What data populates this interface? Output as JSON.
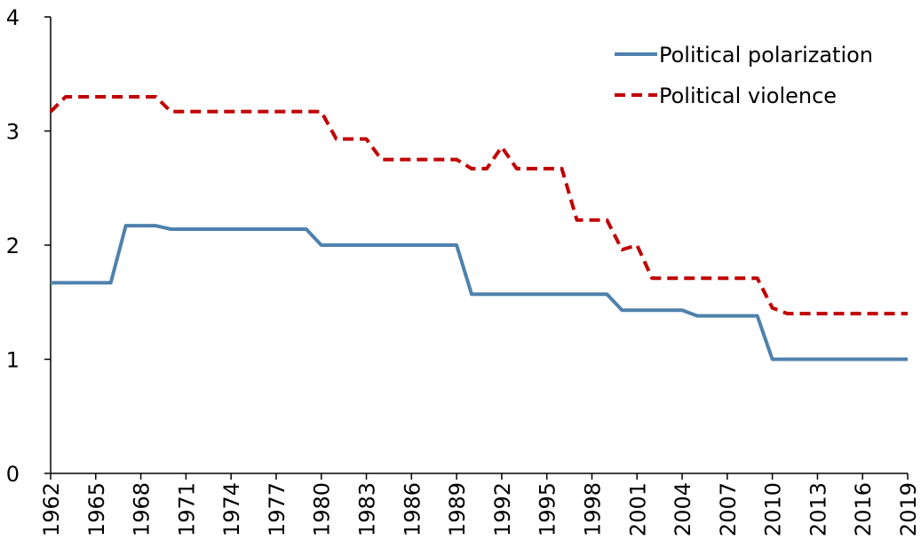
{
  "chart_data": {
    "type": "line",
    "x": [
      1962,
      1963,
      1964,
      1965,
      1966,
      1967,
      1968,
      1969,
      1970,
      1971,
      1972,
      1973,
      1974,
      1975,
      1976,
      1977,
      1978,
      1979,
      1980,
      1981,
      1982,
      1983,
      1984,
      1985,
      1986,
      1987,
      1988,
      1989,
      1990,
      1991,
      1992,
      1993,
      1994,
      1995,
      1996,
      1997,
      1998,
      1999,
      2000,
      2001,
      2002,
      2003,
      2004,
      2005,
      2006,
      2007,
      2008,
      2009,
      2010,
      2011,
      2012,
      2013,
      2014,
      2015,
      2016,
      2017,
      2018,
      2019
    ],
    "series": [
      {
        "name": "Political polarization",
        "color": "#4f81ad",
        "dash": false,
        "values": [
          1.67,
          1.67,
          1.67,
          1.67,
          1.67,
          2.17,
          2.17,
          2.17,
          2.14,
          2.14,
          2.14,
          2.14,
          2.14,
          2.14,
          2.14,
          2.14,
          2.14,
          2.14,
          2.0,
          2.0,
          2.0,
          2.0,
          2.0,
          2.0,
          2.0,
          2.0,
          2.0,
          2.0,
          1.57,
          1.57,
          1.57,
          1.57,
          1.57,
          1.57,
          1.57,
          1.57,
          1.57,
          1.57,
          1.43,
          1.43,
          1.43,
          1.43,
          1.43,
          1.38,
          1.38,
          1.38,
          1.38,
          1.38,
          1.0,
          1.0,
          1.0,
          1.0,
          1.0,
          1.0,
          1.0,
          1.0,
          1.0,
          1.0
        ]
      },
      {
        "name": "Political violence",
        "color": "#c00000",
        "dash": true,
        "values": [
          3.17,
          3.3,
          3.3,
          3.3,
          3.3,
          3.3,
          3.3,
          3.3,
          3.17,
          3.17,
          3.17,
          3.17,
          3.17,
          3.17,
          3.17,
          3.17,
          3.17,
          3.17,
          3.17,
          2.93,
          2.93,
          2.93,
          2.75,
          2.75,
          2.75,
          2.75,
          2.75,
          2.75,
          2.67,
          2.67,
          2.86,
          2.67,
          2.67,
          2.67,
          2.67,
          2.22,
          2.22,
          2.22,
          1.96,
          2.0,
          1.71,
          1.71,
          1.71,
          1.71,
          1.71,
          1.71,
          1.71,
          1.71,
          1.45,
          1.4,
          1.4,
          1.4,
          1.4,
          1.4,
          1.4,
          1.4,
          1.4,
          1.4
        ]
      }
    ],
    "xlim": [
      1962,
      2019
    ],
    "xticks": [
      1962,
      1965,
      1968,
      1971,
      1974,
      1977,
      1980,
      1983,
      1986,
      1989,
      1992,
      1995,
      1998,
      2001,
      2004,
      2007,
      2010,
      2013,
      2016,
      2019
    ],
    "ylim": [
      0,
      4
    ],
    "yticks": [
      0,
      1,
      2,
      3,
      4
    ],
    "grid": false,
    "legend": "upper right"
  }
}
